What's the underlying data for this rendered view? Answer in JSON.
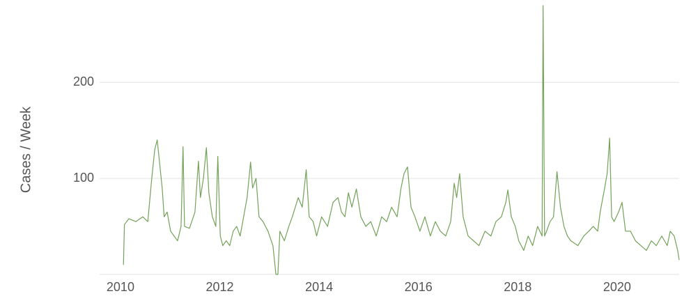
{
  "chart_data": {
    "type": "line",
    "y_label": "Cases / Week",
    "xlim": [
      2009.58,
      2021.25
    ],
    "xticks": [
      2010,
      2012,
      2014,
      2016,
      2018,
      2020
    ],
    "ylim": [
      0,
      280
    ],
    "yticks": [
      100,
      200
    ],
    "grid": true,
    "color": "#72a258",
    "x": [
      2010.06,
      2010.08,
      2010.17,
      2010.31,
      2010.45,
      2010.55,
      2010.63,
      2010.69,
      2010.74,
      2010.8,
      2010.84,
      2010.88,
      2010.94,
      2011.01,
      2011.08,
      2011.15,
      2011.22,
      2011.26,
      2011.29,
      2011.39,
      2011.5,
      2011.57,
      2011.61,
      2011.67,
      2011.73,
      2011.78,
      2011.85,
      2011.92,
      2011.96,
      2012.01,
      2012.06,
      2012.13,
      2012.2,
      2012.27,
      2012.34,
      2012.41,
      2012.48,
      2012.55,
      2012.62,
      2012.66,
      2012.73,
      2012.79,
      2012.87,
      2012.97,
      2013.07,
      2013.13,
      2013.17,
      2013.21,
      2013.3,
      2013.39,
      2013.46,
      2013.58,
      2013.66,
      2013.74,
      2013.8,
      2013.88,
      2013.95,
      2014.05,
      2014.17,
      2014.28,
      2014.38,
      2014.45,
      2014.52,
      2014.59,
      2014.66,
      2014.75,
      2014.84,
      2014.94,
      2015.04,
      2015.15,
      2015.26,
      2015.36,
      2015.46,
      2015.57,
      2015.65,
      2015.71,
      2015.78,
      2015.85,
      2015.93,
      2016.03,
      2016.13,
      2016.24,
      2016.34,
      2016.44,
      2016.55,
      2016.65,
      2016.72,
      2016.77,
      2016.83,
      2016.9,
      2017.0,
      2017.11,
      2017.22,
      2017.34,
      2017.46,
      2017.56,
      2017.67,
      2017.76,
      2017.8,
      2017.87,
      2017.95,
      2018.02,
      2018.12,
      2018.21,
      2018.3,
      2018.4,
      2018.49,
      2018.51,
      2018.54,
      2018.58,
      2018.65,
      2018.72,
      2018.79,
      2018.86,
      2018.93,
      2019.0,
      2019.07,
      2019.21,
      2019.33,
      2019.43,
      2019.52,
      2019.61,
      2019.66,
      2019.75,
      2019.8,
      2019.85,
      2019.89,
      2019.94,
      2020.03,
      2020.1,
      2020.17,
      2020.27,
      2020.37,
      2020.48,
      2020.59,
      2020.69,
      2020.79,
      2020.9,
      2021.01,
      2021.07,
      2021.15,
      2021.22,
      2021.25
    ],
    "values": [
      10,
      52,
      58,
      55,
      60,
      55,
      100,
      130,
      140,
      110,
      90,
      60,
      65,
      45,
      40,
      35,
      50,
      133,
      50,
      48,
      65,
      118,
      80,
      100,
      132,
      85,
      60,
      50,
      123,
      40,
      30,
      35,
      30,
      45,
      50,
      40,
      60,
      80,
      117,
      90,
      100,
      60,
      55,
      45,
      30,
      0,
      0,
      45,
      35,
      50,
      60,
      80,
      70,
      109,
      60,
      55,
      40,
      60,
      50,
      75,
      80,
      65,
      60,
      85,
      70,
      89,
      60,
      50,
      55,
      40,
      60,
      55,
      70,
      60,
      90,
      105,
      112,
      70,
      60,
      45,
      60,
      40,
      55,
      45,
      40,
      55,
      95,
      80,
      105,
      60,
      40,
      35,
      30,
      45,
      40,
      55,
      60,
      75,
      88,
      60,
      50,
      35,
      25,
      40,
      30,
      50,
      40,
      280,
      40,
      45,
      55,
      60,
      107,
      70,
      50,
      40,
      35,
      30,
      40,
      45,
      50,
      45,
      65,
      90,
      105,
      142,
      60,
      55,
      65,
      75,
      45,
      45,
      35,
      30,
      25,
      35,
      30,
      40,
      30,
      45,
      40,
      25,
      15
    ]
  }
}
